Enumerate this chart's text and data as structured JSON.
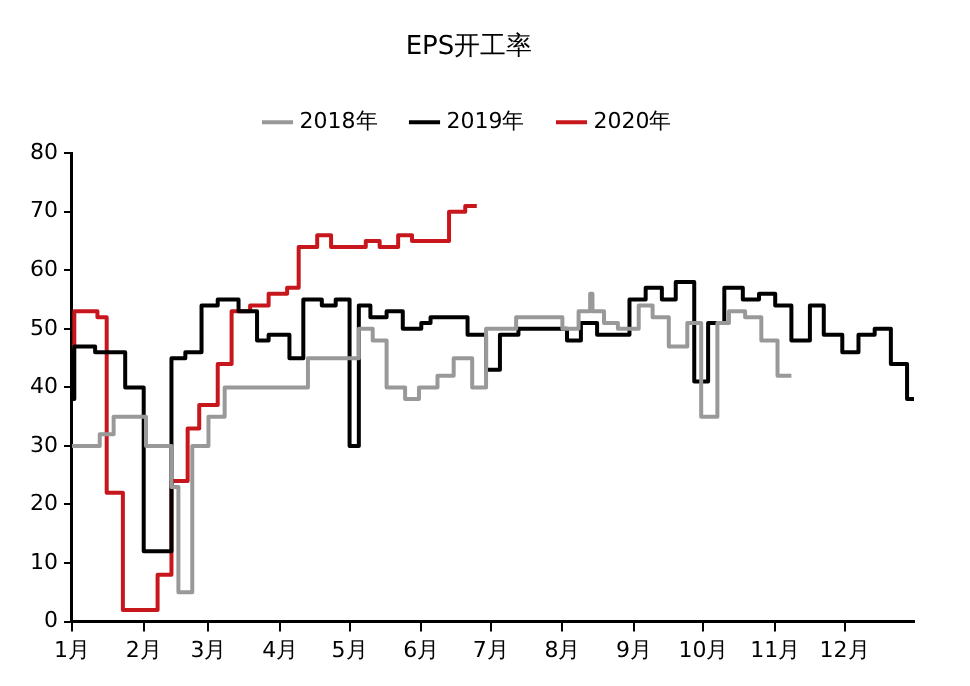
{
  "chart_data": {
    "type": "step",
    "title": "EPS开工率",
    "legend": "top",
    "grid": false,
    "marker": "none",
    "line_style": "solid",
    "xlim": [
      "--01-01",
      "--12-31"
    ],
    "xticks": [
      {
        "value": "--01-01",
        "label": "1月"
      },
      {
        "value": "--02-01",
        "label": "2月"
      },
      {
        "value": "--03-01",
        "label": "3月"
      },
      {
        "value": "--04-01",
        "label": "4月"
      },
      {
        "value": "--05-01",
        "label": "5月"
      },
      {
        "value": "--06-01",
        "label": "6月"
      },
      {
        "value": "--07-01",
        "label": "7月"
      },
      {
        "value": "--08-01",
        "label": "8月"
      },
      {
        "value": "--09-01",
        "label": "9月"
      },
      {
        "value": "--10-01",
        "label": "10月"
      },
      {
        "value": "--11-01",
        "label": "11月"
      },
      {
        "value": "--12-01",
        "label": "12月"
      }
    ],
    "ylim": [
      0,
      80
    ],
    "yticks": [
      0,
      10,
      20,
      30,
      40,
      50,
      60,
      70,
      80
    ],
    "series": [
      {
        "name": "2018年",
        "color": "#999999",
        "x": [
          "--01-01",
          "--01-13",
          "--01-19",
          "--02-02",
          "--02-13",
          "--02-16",
          "--02-22",
          "--03-01",
          "--03-08",
          "--04-13",
          "--05-05",
          "--05-11",
          "--05-17",
          "--05-25",
          "--05-31",
          "--06-08",
          "--06-15",
          "--06-23",
          "--06-29",
          "--07-12",
          "--08-01",
          "--08-08",
          "--08-13",
          "--08-14",
          "--08-19",
          "--08-25",
          "--09-03",
          "--09-09",
          "--09-16",
          "--09-24",
          "--09-30",
          "--10-07",
          "--10-12",
          "--10-19",
          "--10-26",
          "--11-02",
          "--11-08"
        ],
        "values": [
          30,
          32,
          35,
          30,
          23,
          5,
          30,
          35,
          40,
          45,
          50,
          48,
          40,
          38,
          40,
          42,
          45,
          40,
          50,
          52,
          50,
          53,
          56,
          53,
          51,
          50,
          54,
          52,
          47,
          51,
          35,
          51,
          53,
          52,
          48,
          42,
          42
        ]
      },
      {
        "name": "2019年",
        "color": "#000000",
        "x": [
          "--01-01",
          "--01-02",
          "--01-11",
          "--01-24",
          "--02-01",
          "--02-13",
          "--02-19",
          "--02-26",
          "--03-05",
          "--03-14",
          "--03-22",
          "--03-27",
          "--04-05",
          "--04-11",
          "--04-19",
          "--04-25",
          "--05-01",
          "--05-05",
          "--05-10",
          "--05-17",
          "--05-24",
          "--06-01",
          "--06-05",
          "--06-21",
          "--06-29",
          "--07-05",
          "--07-13",
          "--08-03",
          "--08-09",
          "--08-16",
          "--08-30",
          "--09-06",
          "--09-13",
          "--09-19",
          "--09-27",
          "--10-03",
          "--10-10",
          "--10-18",
          "--10-25",
          "--11-01",
          "--11-08",
          "--11-16",
          "--11-22",
          "--11-30",
          "--12-07",
          "--12-14",
          "--12-21",
          "--12-28",
          "--12-31"
        ],
        "values": [
          38,
          47,
          46,
          40,
          12,
          45,
          46,
          54,
          55,
          53,
          48,
          49,
          45,
          55,
          54,
          55,
          30,
          54,
          52,
          53,
          50,
          51,
          52,
          49,
          43,
          49,
          50,
          48,
          51,
          49,
          55,
          57,
          55,
          58,
          41,
          51,
          57,
          55,
          56,
          54,
          48,
          54,
          49,
          46,
          49,
          50,
          44,
          38,
          38
        ]
      },
      {
        "name": "2020年",
        "color": "#c8161d",
        "x": [
          "--01-01",
          "--01-02",
          "--01-12",
          "--01-16",
          "--01-23",
          "--02-07",
          "--02-13",
          "--02-20",
          "--02-25",
          "--03-05",
          "--03-11",
          "--03-19",
          "--03-27",
          "--04-04",
          "--04-09",
          "--04-17",
          "--04-23",
          "--05-01",
          "--05-08",
          "--05-14",
          "--05-22",
          "--05-28",
          "--06-08",
          "--06-13",
          "--06-20",
          "--06-25"
        ],
        "values": [
          47,
          53,
          52,
          22,
          2,
          8,
          24,
          33,
          37,
          44,
          53,
          54,
          56,
          57,
          64,
          66,
          64,
          64,
          65,
          64,
          66,
          65,
          65,
          70,
          71,
          71
        ]
      }
    ]
  }
}
